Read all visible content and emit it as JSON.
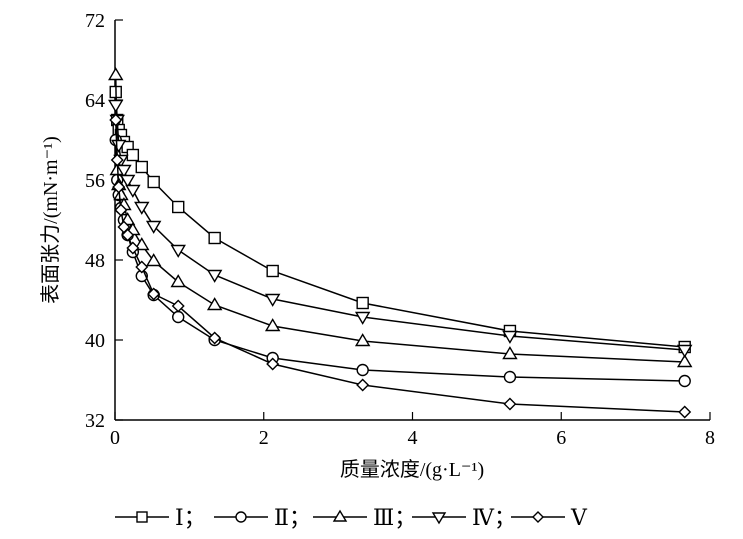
{
  "chart_data": {
    "type": "line",
    "xlabel": "质量浓度/(g·L⁻¹)",
    "ylabel": "表面张力/(mN·m⁻¹)",
    "xlim": [
      0,
      8
    ],
    "ylim": [
      32,
      72
    ],
    "xticks": [
      0,
      2,
      4,
      6,
      8
    ],
    "yticks": [
      32,
      40,
      48,
      56,
      64,
      72
    ],
    "grid": false,
    "legend_position": "bottom",
    "x": [
      0.01,
      0.03,
      0.05,
      0.08,
      0.12,
      0.17,
      0.24,
      0.36,
      0.52,
      0.85,
      1.34,
      2.12,
      3.33,
      5.31,
      7.66
    ],
    "series": [
      {
        "name": "Ⅰ",
        "marker": "square",
        "values": [
          64.8,
          62,
          61,
          60.5,
          59.8,
          59.3,
          58.5,
          57.3,
          55.8,
          53.3,
          50.2,
          46.9,
          43.7,
          40.9,
          39.3
        ]
      },
      {
        "name": "Ⅱ",
        "marker": "circle",
        "values": [
          60,
          56,
          54.5,
          53.2,
          52,
          50.5,
          48.8,
          46.4,
          44.5,
          42.3,
          40.0,
          38.2,
          37.0,
          36.3,
          35.9
        ]
      },
      {
        "name": "Ⅲ",
        "marker": "triangle-up",
        "values": [
          66.5,
          57,
          55.5,
          54.5,
          53.5,
          52,
          51,
          49.5,
          47.9,
          45.8,
          43.5,
          41.4,
          39.9,
          38.6,
          37.8
        ]
      },
      {
        "name": "Ⅳ",
        "marker": "triangle-down",
        "values": [
          63.5,
          62,
          59.5,
          58,
          57,
          56,
          55,
          53.3,
          51.4,
          49,
          46.5,
          44.1,
          42.3,
          40.4,
          39.0
        ]
      },
      {
        "name": "Ⅴ",
        "marker": "diamond",
        "values": [
          62,
          58,
          55.3,
          53,
          51.3,
          50.5,
          49.2,
          47.3,
          44.6,
          43.4,
          40.2,
          37.6,
          35.5,
          33.6,
          32.8
        ]
      }
    ]
  }
}
